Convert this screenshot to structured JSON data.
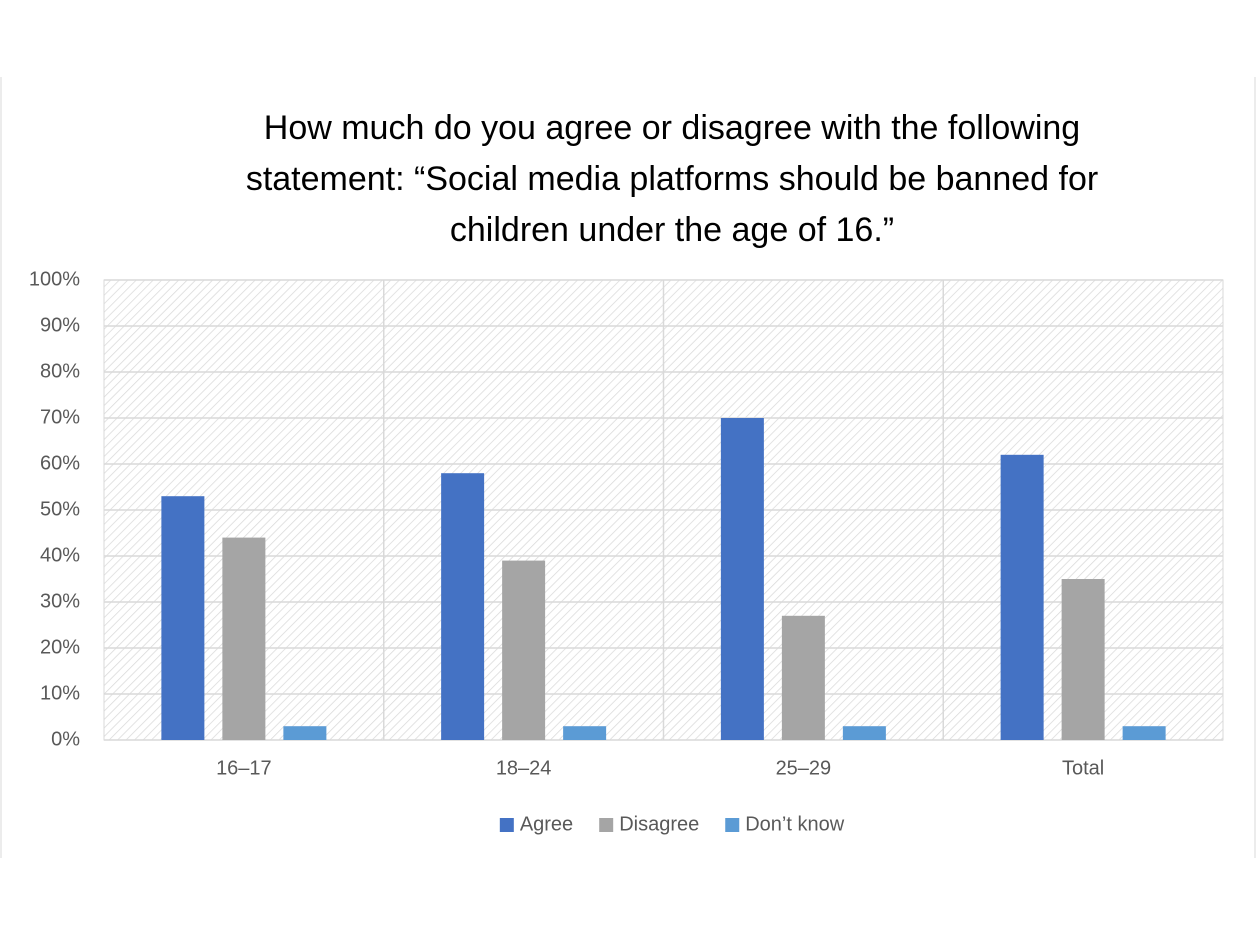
{
  "chart_data": {
    "type": "bar",
    "title": [
      "How much do you agree or disagree with the following",
      "statement: “Social media platforms should be banned for",
      "children under the age of 16.”"
    ],
    "categories": [
      "16–17",
      "18–24",
      "25–29",
      "Total"
    ],
    "series": [
      {
        "name": "Agree",
        "color": "#4472c4",
        "values": [
          53,
          58,
          70,
          62
        ]
      },
      {
        "name": "Disagree",
        "color": "#a5a5a5",
        "values": [
          44,
          39,
          27,
          35
        ]
      },
      {
        "name": "Don’t know",
        "color": "#5b9bd5",
        "values": [
          3,
          3,
          3,
          3
        ]
      }
    ],
    "ylim": [
      0,
      100
    ],
    "yticks": [
      {
        "value": 0,
        "label": "0%"
      },
      {
        "value": 10,
        "label": "10%"
      },
      {
        "value": 20,
        "label": "20%"
      },
      {
        "value": 30,
        "label": "30%"
      },
      {
        "value": 40,
        "label": "40%"
      },
      {
        "value": 50,
        "label": "50%"
      },
      {
        "value": 60,
        "label": "60%"
      },
      {
        "value": 70,
        "label": "70%"
      },
      {
        "value": 80,
        "label": "80%"
      },
      {
        "value": 90,
        "label": "90%"
      },
      {
        "value": 100,
        "label": "100%"
      }
    ],
    "grid": true,
    "legend": "bottom"
  }
}
